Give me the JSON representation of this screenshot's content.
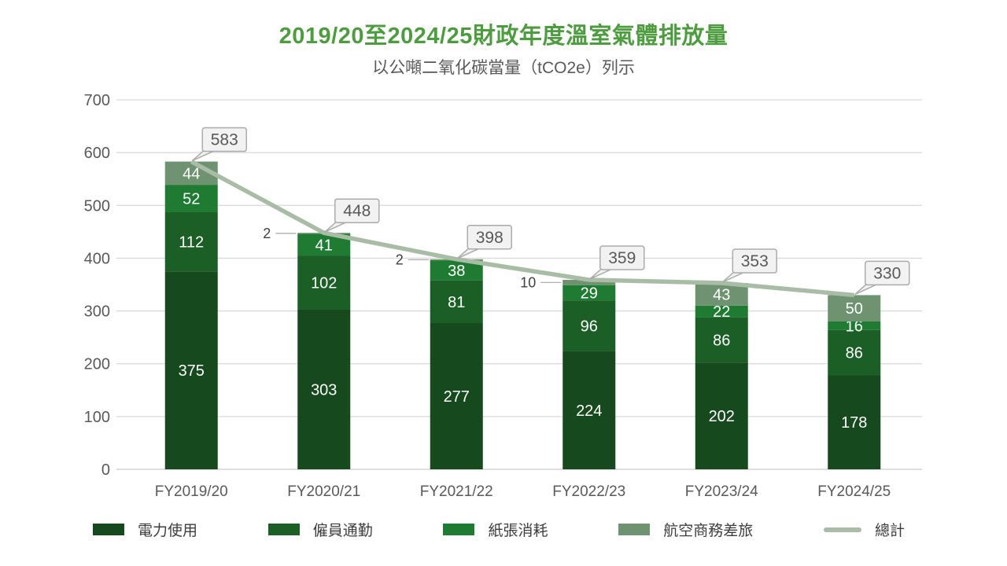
{
  "header": {
    "title": "2019/20至2024/25財政年度溫室氣體排放量",
    "subtitle": "以公噸二氧化碳當量（tCO2e）列示",
    "title_color": "#4E9C40",
    "subtitle_color": "#595959"
  },
  "chart_data": {
    "type": "bar",
    "subtype": "stacked-bars-with-total-line",
    "title": "2019/20至2024/25財政年度溫室氣體排放量",
    "subtitle": "以公噸二氧化碳當量（tCO2e）列示",
    "categories": [
      "FY2019/20",
      "FY2020/21",
      "FY2021/22",
      "FY2022/23",
      "FY2023/24",
      "FY2024/25"
    ],
    "series": [
      {
        "name": "電力使用",
        "color": "#17491E",
        "values": [
          375,
          303,
          277,
          224,
          202,
          178
        ]
      },
      {
        "name": "僱員通勤",
        "color": "#1B5E26",
        "values": [
          112,
          102,
          81,
          96,
          86,
          86
        ]
      },
      {
        "name": "紙張消耗",
        "color": "#1F7B31",
        "values": [
          52,
          41,
          38,
          29,
          22,
          16
        ]
      },
      {
        "name": "航空商務差旅",
        "color": "#6F9271",
        "values": [
          44,
          2,
          2,
          10,
          43,
          50
        ]
      }
    ],
    "line_series": {
      "name": "總計",
      "color": "#A9BDA6",
      "values": [
        583,
        448,
        398,
        359,
        353,
        330
      ]
    },
    "ylim": [
      0,
      700
    ],
    "ytick_step": 100,
    "yticks": [
      "0",
      "100",
      "200",
      "300",
      "400",
      "500",
      "600",
      "700"
    ],
    "xlabel": "",
    "ylabel": "",
    "grid": true,
    "legend_position": "bottom",
    "callout_style": {
      "fill": "#F2F2F2",
      "border": "#ABABAB",
      "text_color": "#595959"
    },
    "colors": {
      "gridline": "#D9D9D9",
      "axis_line": "#C9C9C9",
      "axis_text": "#595959",
      "bar_label_text": "#FFFFFF",
      "leader_text": "#404040",
      "leader_line": "#A6A6A6"
    }
  }
}
